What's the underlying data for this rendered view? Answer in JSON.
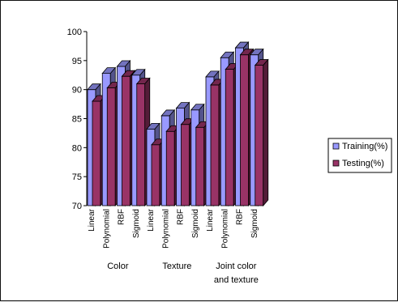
{
  "chart_data": {
    "type": "bar",
    "style": "3d-clustered-column",
    "categories": [
      "Linear",
      "Polynomial",
      "RBF",
      "Sigmoid",
      "Linear",
      "Polynomial",
      "RBF",
      "Sigmoid",
      "Linear",
      "Polynomial",
      "RBF",
      "Sigmoid"
    ],
    "groups": [
      {
        "label": "Color",
        "lines": [
          "Color"
        ],
        "span": [
          0,
          3
        ]
      },
      {
        "label": "Texture",
        "lines": [
          "Texture"
        ],
        "span": [
          4,
          7
        ]
      },
      {
        "label": "Joint color and texture",
        "lines": [
          "Joint color",
          "and texture"
        ],
        "span": [
          8,
          11
        ]
      }
    ],
    "series": [
      {
        "name": "Training(%)",
        "color": "#9999ff",
        "values": [
          90,
          92.8,
          94,
          92.5,
          83.2,
          85.5,
          86.8,
          86.5,
          92.2,
          95.5,
          97.2,
          96
        ]
      },
      {
        "name": "Testing(%)",
        "color": "#993366",
        "values": [
          88,
          90.3,
          92.3,
          91,
          80.5,
          82.8,
          84,
          83.5,
          90.8,
          93.5,
          96,
          94.2
        ]
      }
    ],
    "yticks": [
      70,
      75,
      80,
      85,
      90,
      95,
      100
    ],
    "ylim": [
      70,
      100
    ],
    "legend_position": "right",
    "grid": false,
    "colors": {
      "axis": "#000000",
      "frame": "#111111",
      "background": "#ffffff"
    }
  }
}
